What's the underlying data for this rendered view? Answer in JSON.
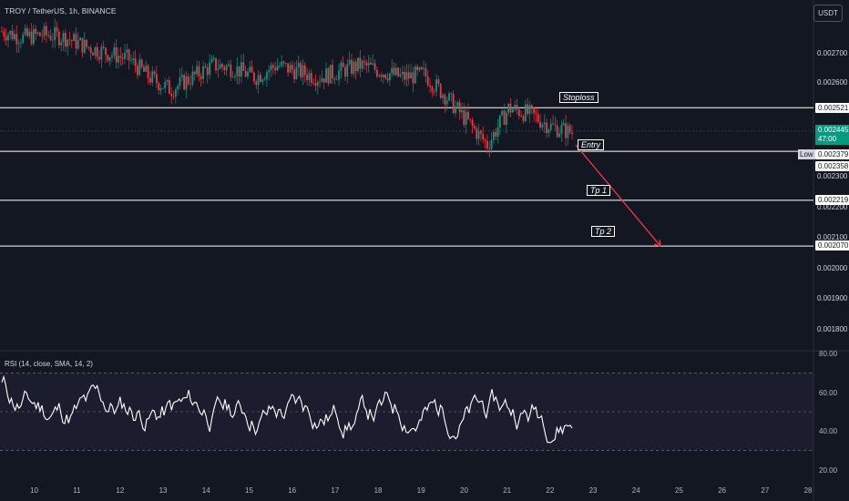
{
  "header": {
    "title": "TROY / TetherUS, 1h, BINANCE"
  },
  "currency_button": "USDT",
  "price_axis": [
    "0.002700",
    "0.002600",
    "0.002300",
    "0.002200",
    "0.002100",
    "0.002000",
    "0.001900",
    "0.001800"
  ],
  "levels": [
    {
      "value": "0.002521",
      "label": "Stoploss"
    },
    {
      "value": "0.002379",
      "label": "Entry"
    },
    {
      "value": "0.002358",
      "label": ""
    },
    {
      "value": "0.002219",
      "label": "Tp 1"
    },
    {
      "value": "0.002070",
      "label": "Tp 2"
    }
  ],
  "current_price": {
    "value": "0.002445",
    "countdown": "47:00",
    "color": "#089981"
  },
  "low_tag": "Low",
  "rsi": {
    "title": "RSI (14, close, SMA, 14, 2)",
    "axis": [
      "80.00",
      "60.00",
      "40.00",
      "20.00"
    ],
    "upper": 70,
    "lower": 30
  },
  "x_axis": [
    "10",
    "11",
    "12",
    "13",
    "14",
    "15",
    "16",
    "17",
    "18",
    "19",
    "20",
    "21",
    "22",
    "23",
    "24",
    "25",
    "26",
    "27",
    "28"
  ],
  "colors": {
    "up": "#089981",
    "down": "#f23645",
    "bg": "#131722",
    "arrow": "#f23645"
  },
  "chart_data": {
    "type": "candlestick",
    "close_path": [
      0.00277,
      0.00275,
      0.00276,
      0.00275,
      0.00272,
      0.0027,
      0.00268,
      0.00262,
      0.00258,
      0.00262,
      0.00266,
      0.00265,
      0.00262,
      0.00266,
      0.00264,
      0.00262,
      0.00264,
      0.00266,
      0.00264,
      0.00262,
      0.00263,
      0.00256,
      0.00248,
      0.0024,
      0.00252,
      0.0025,
      0.00246,
      0.00244
    ],
    "projection": {
      "from": 0.0024,
      "to": 0.00207
    }
  }
}
